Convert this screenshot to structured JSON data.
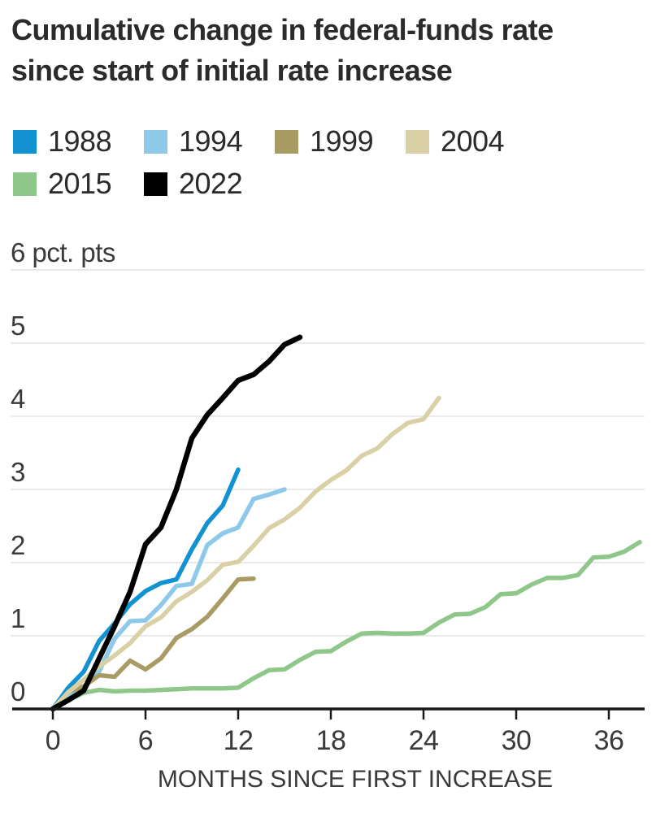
{
  "page": {
    "background": "#ffffff"
  },
  "title_lines": [
    "Cumulative change in federal-funds rate",
    "since start of initial rate increase"
  ],
  "axis_style": {
    "grid_color": "#e4e4e4",
    "axis_color": "#1a1a1a",
    "label_color": "#3a3a3a"
  },
  "chart_data": {
    "type": "line",
    "title": "Cumulative change in federal-funds rate since start of initial rate increase",
    "y_top_label": "6 pct. pts",
    "xlabel": "MONTHS SINCE FIRST INCREASE",
    "ylabel": "pct. pts",
    "xlim": [
      0,
      38.5
    ],
    "ylim": [
      0,
      6
    ],
    "x_ticks": [
      0,
      6,
      12,
      18,
      24,
      30,
      36
    ],
    "y_ticks": [
      0,
      1,
      2,
      3,
      4,
      5,
      6
    ],
    "grid": "horizontal",
    "legend_position": "top-left two rows",
    "x_unit": "months since first increase",
    "series": [
      {
        "name": "1988",
        "color": "#1292d1",
        "x_start": 0,
        "x_step": 1,
        "values": [
          0,
          0.29,
          0.51,
          0.93,
          1.17,
          1.43,
          1.61,
          1.72,
          1.77,
          2.18,
          2.54,
          2.78,
          3.27
        ]
      },
      {
        "name": "1994",
        "color": "#8fc9e9",
        "x_start": 0,
        "x_step": 1,
        "values": [
          0,
          0.2,
          0.29,
          0.51,
          0.96,
          1.2,
          1.21,
          1.42,
          1.68,
          1.71,
          2.24,
          2.4,
          2.48,
          2.87,
          2.93,
          3.0
        ]
      },
      {
        "name": "1999",
        "color": "#a89b63",
        "x_start": 0,
        "x_step": 1,
        "values": [
          0,
          0.23,
          0.31,
          0.46,
          0.44,
          0.66,
          0.54,
          0.69,
          0.97,
          1.09,
          1.26,
          1.51,
          1.77,
          1.78
        ]
      },
      {
        "name": "2004",
        "color": "#d9d0a6",
        "x_start": 0,
        "x_step": 1,
        "values": [
          0,
          0.23,
          0.4,
          0.58,
          0.73,
          0.9,
          1.13,
          1.25,
          1.47,
          1.6,
          1.76,
          1.97,
          2.01,
          2.23,
          2.47,
          2.59,
          2.75,
          2.97,
          3.13,
          3.26,
          3.46,
          3.56,
          3.76,
          3.91,
          3.96,
          4.25
        ]
      },
      {
        "name": "2015",
        "color": "#8fc689",
        "x_start": 0,
        "x_step": 1,
        "values": [
          0,
          0.12,
          0.22,
          0.26,
          0.24,
          0.25,
          0.25,
          0.26,
          0.27,
          0.28,
          0.28,
          0.28,
          0.29,
          0.42,
          0.53,
          0.54,
          0.67,
          0.78,
          0.79,
          0.92,
          1.03,
          1.04,
          1.03,
          1.03,
          1.04,
          1.18,
          1.29,
          1.3,
          1.39,
          1.57,
          1.58,
          1.7,
          1.79,
          1.79,
          1.83,
          2.07,
          2.08,
          2.15,
          2.28
        ]
      },
      {
        "name": "2022",
        "color": "#000000",
        "x_start": 0,
        "x_step": 1,
        "values": [
          0,
          0.12,
          0.25,
          0.69,
          1.13,
          1.6,
          2.25,
          2.48,
          3.0,
          3.7,
          4.02,
          4.25,
          4.49,
          4.57,
          4.75,
          4.98,
          5.08
        ]
      }
    ]
  }
}
